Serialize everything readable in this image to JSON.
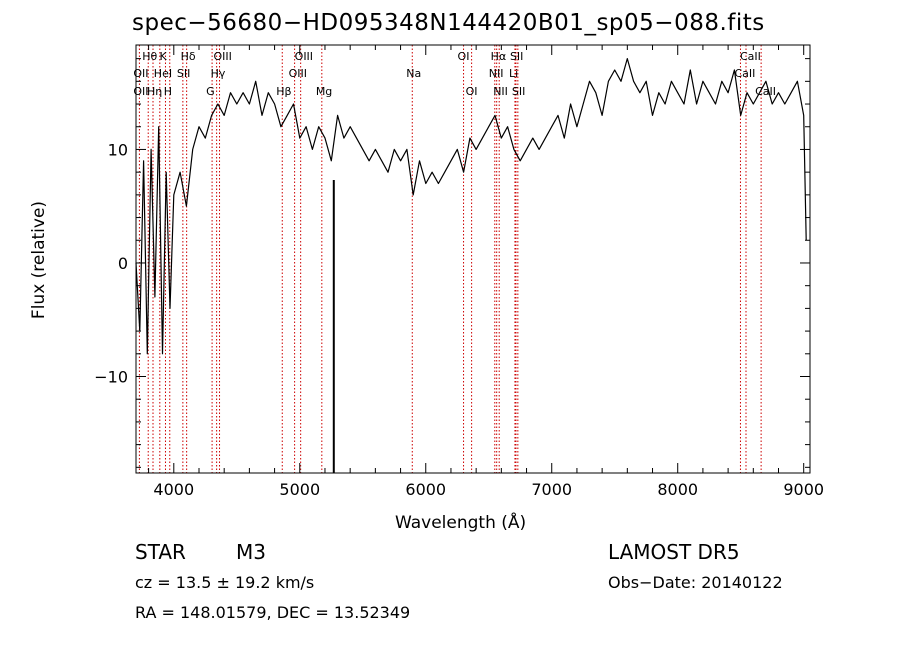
{
  "header": {
    "title": "spec−56680−HD095348N144420B01_sp05−088.fits"
  },
  "footer": {
    "class_label": "STAR",
    "subclass_label": "M3",
    "survey_label": "LAMOST  DR5",
    "cz_text": "cz = 13.5 ± 19.2 km/s",
    "obs_date_text": "Obs−Date: 20140122",
    "coords_text": "RA = 148.01579, DEC =  13.52349"
  },
  "chart_data": {
    "type": "line",
    "title": "spec−56680−HD095348N144420B01_sp05−088.fits",
    "xlabel": "Wavelength (Å)",
    "ylabel": "Flux (relative)",
    "xlim": [
      3700,
      9050
    ],
    "ylim": [
      -18.5,
      19.2
    ],
    "grid": false,
    "x_ticks": [
      4000,
      5000,
      6000,
      7000,
      8000,
      9000
    ],
    "y_ticks": [
      -10,
      0,
      10
    ],
    "series": [
      {
        "color": "#000000",
        "x": [
          3700,
          3730,
          3760,
          3790,
          3820,
          3850,
          3880,
          3910,
          3940,
          3970,
          4000,
          4050,
          4100,
          4150,
          4200,
          4250,
          4300,
          4350,
          4400,
          4450,
          4500,
          4550,
          4600,
          4650,
          4700,
          4750,
          4800,
          4850,
          4900,
          4950,
          5000,
          5050,
          5100,
          5150,
          5200,
          5250,
          5300,
          5350,
          5400,
          5450,
          5500,
          5550,
          5600,
          5650,
          5700,
          5750,
          5800,
          5850,
          5900,
          5950,
          6000,
          6050,
          6100,
          6150,
          6200,
          6250,
          6300,
          6350,
          6400,
          6450,
          6500,
          6550,
          6600,
          6650,
          6700,
          6750,
          6800,
          6850,
          6900,
          6950,
          7000,
          7050,
          7100,
          7150,
          7200,
          7250,
          7300,
          7350,
          7400,
          7450,
          7500,
          7550,
          7600,
          7650,
          7700,
          7750,
          7800,
          7850,
          7900,
          7950,
          8000,
          8050,
          8100,
          8150,
          8200,
          8250,
          8300,
          8350,
          8400,
          8450,
          8500,
          8550,
          8600,
          8650,
          8700,
          8750,
          8800,
          8850,
          8900,
          8950,
          9000,
          9020
        ],
        "y": [
          0,
          -6,
          9,
          -8,
          10,
          -3,
          12,
          -8,
          8,
          -4,
          6,
          8,
          5,
          10,
          12,
          11,
          13,
          14,
          13,
          15,
          14,
          15,
          14,
          16,
          13,
          15,
          14,
          12,
          13,
          14,
          11,
          12,
          10,
          12,
          11,
          9,
          13,
          11,
          12,
          11,
          10,
          9,
          10,
          9,
          8,
          10,
          9,
          10,
          6,
          9,
          7,
          8,
          7,
          8,
          9,
          10,
          8,
          11,
          10,
          11,
          12,
          13,
          11,
          12,
          10,
          9,
          10,
          11,
          10,
          11,
          12,
          13,
          11,
          14,
          12,
          14,
          16,
          15,
          13,
          16,
          17,
          16,
          18,
          16,
          15,
          16,
          13,
          15,
          14,
          16,
          15,
          14,
          17,
          14,
          16,
          15,
          14,
          16,
          15,
          17,
          13,
          15,
          14,
          15,
          16,
          14,
          15,
          14,
          15,
          16,
          13,
          2
        ]
      }
    ],
    "spectral_lines": [
      {
        "label": "Hθ",
        "wavelength": 3797,
        "row": 1
      },
      {
        "label": "K",
        "wavelength": 3934,
        "row": 1
      },
      {
        "label": "Hδ",
        "wavelength": 4102,
        "row": 1
      },
      {
        "label": "OIII",
        "wavelength": 4363,
        "row": 1
      },
      {
        "label": "OIII",
        "wavelength": 5007,
        "row": 1
      },
      {
        "label": "OI",
        "wavelength": 6300,
        "row": 1
      },
      {
        "label": "Hα",
        "wavelength": 6563,
        "row": 1
      },
      {
        "label": "SII",
        "wavelength": 6716,
        "row": 1
      },
      {
        "label": "CaII",
        "wavelength": 8542,
        "row": 1
      },
      {
        "label": "OII",
        "wavelength": 3727,
        "row": 2
      },
      {
        "label": "HeI",
        "wavelength": 3889,
        "row": 2
      },
      {
        "label": "SII",
        "wavelength": 4072,
        "row": 2
      },
      {
        "label": "Hγ",
        "wavelength": 4340,
        "row": 2
      },
      {
        "label": "OIII",
        "wavelength": 4959,
        "row": 2
      },
      {
        "label": "Na",
        "wavelength": 5893,
        "row": 2
      },
      {
        "label": "NII",
        "wavelength": 6548,
        "row": 2
      },
      {
        "label": "Li",
        "wavelength": 6708,
        "row": 2
      },
      {
        "label": "CaII",
        "wavelength": 8498,
        "row": 2
      },
      {
        "label": "OII",
        "wavelength": 3727,
        "row": 3
      },
      {
        "label": "Hη",
        "wavelength": 3835,
        "row": 3
      },
      {
        "label": "H",
        "wavelength": 3968,
        "row": 3
      },
      {
        "label": "G",
        "wavelength": 4304,
        "row": 3
      },
      {
        "label": "Hβ",
        "wavelength": 4861,
        "row": 3
      },
      {
        "label": "Mg",
        "wavelength": 5175,
        "row": 3
      },
      {
        "label": "OI",
        "wavelength": 6364,
        "row": 3
      },
      {
        "label": "NII",
        "wavelength": 6583,
        "row": 3
      },
      {
        "label": "SII",
        "wavelength": 6731,
        "row": 3
      },
      {
        "label": "CaII",
        "wavelength": 8662,
        "row": 3
      }
    ],
    "vertical_marker": {
      "wavelength": 5270,
      "color": "#000000"
    }
  }
}
